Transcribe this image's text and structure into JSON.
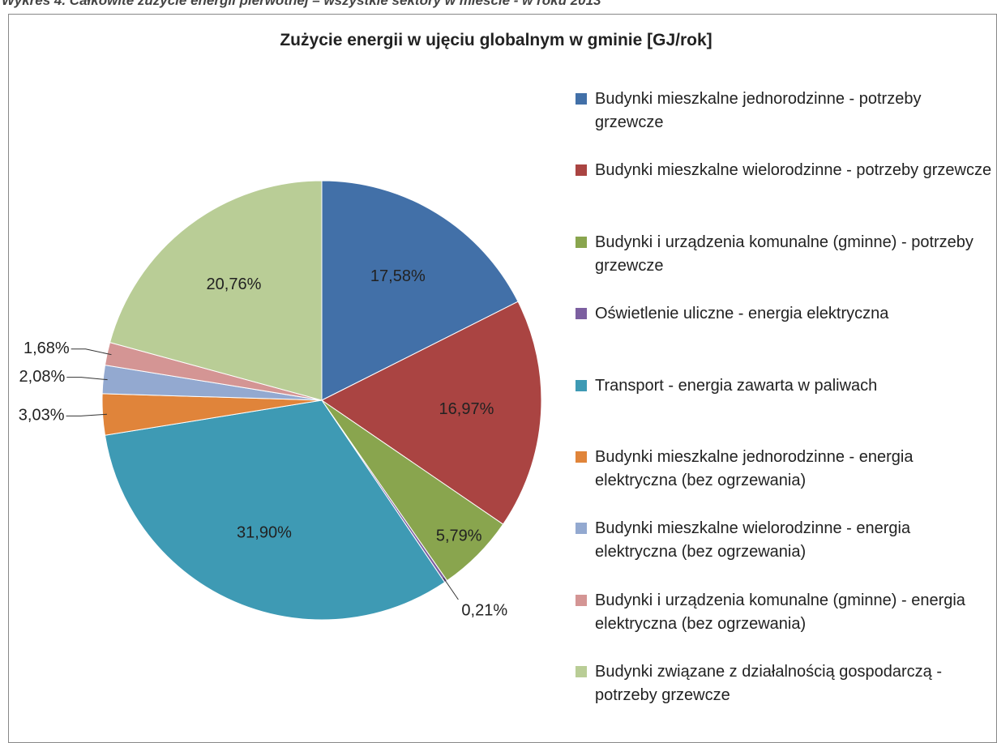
{
  "caption": "Wykres 4. Całkowite zużycie energii pierwotnej – wszystkie sektory w mieście - w roku 2013",
  "chart_data": {
    "type": "pie",
    "title": "Zużycie energii w ujęciu globalnym w gminie [GJ/rok]",
    "categories": [
      "Budynki mieszkalne jednorodzinne - potrzeby grzewcze",
      "Budynki mieszkalne wielorodzinne - potrzeby grzewcze",
      "Budynki i urządzenia komunalne (gminne) - potrzeby grzewcze",
      "Oświetlenie uliczne - energia elektryczna",
      "Transport - energia zawarta w paliwach",
      "Budynki mieszkalne jednorodzinne - energia elektryczna (bez ogrzewania)",
      "Budynki mieszkalne wielorodzinne - energia elektryczna (bez ogrzewania)",
      "Budynki i urządzenia komunalne (gminne) - energia elektryczna (bez ogrzewania)",
      "Budynki związane z działalnością gospodarczą - potrzeby grzewcze"
    ],
    "values": [
      17.58,
      16.97,
      5.79,
      0.21,
      31.9,
      3.03,
      2.08,
      1.68,
      20.76
    ],
    "value_labels": [
      "17,58%",
      "16,97%",
      "5,79%",
      "0,21%",
      "31,90%",
      "3,03%",
      "2,08%",
      "1,68%",
      "20,76%"
    ],
    "colors": [
      "#4270a8",
      "#aa4442",
      "#89a54e",
      "#7c5fa0",
      "#3e9ab4",
      "#e0843a",
      "#93a9d0",
      "#d49594",
      "#b9cd96"
    ],
    "legend": "right"
  }
}
